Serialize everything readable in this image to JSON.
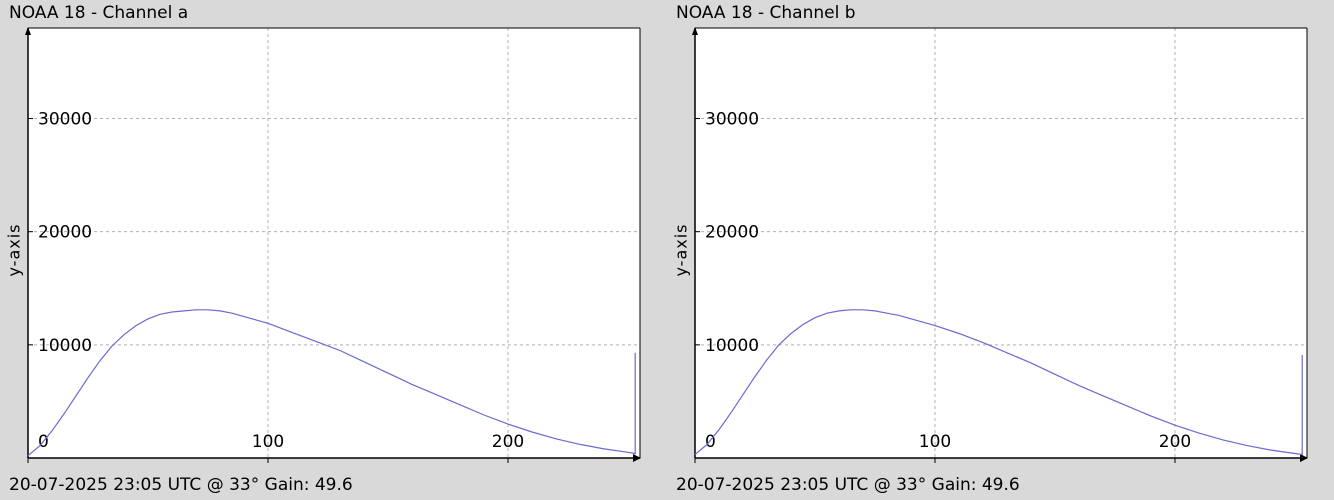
{
  "chart_data": [
    {
      "type": "line",
      "title": "NOAA 18 - Channel a",
      "footer": "20-07-2025 23:05 UTC @ 33° Gain: 49.6",
      "ylabel": "y-axis",
      "xlabel": "",
      "xlim": [
        0,
        255
      ],
      "ylim": [
        0,
        38000
      ],
      "xticks": [
        0,
        100,
        200
      ],
      "xtick_labels": [
        "0",
        "100",
        "200"
      ],
      "yticks": [
        10000,
        20000,
        30000
      ],
      "ytick_labels": [
        "10000",
        "20000",
        "30000"
      ],
      "grid": true,
      "line_color": "#6a6ad0",
      "series": [
        {
          "x": [
            0,
            5,
            10,
            15,
            20,
            25,
            30,
            35,
            40,
            45,
            50,
            55,
            60,
            65,
            70,
            75,
            80,
            85,
            90,
            95,
            100,
            110,
            120,
            130,
            140,
            150,
            160,
            170,
            180,
            190,
            200,
            210,
            220,
            230,
            240,
            250,
            253,
            253,
            253
          ],
          "y": [
            200,
            1100,
            2400,
            3900,
            5500,
            7100,
            8600,
            9900,
            10900,
            11700,
            12300,
            12700,
            12900,
            13000,
            13100,
            13100,
            13000,
            12800,
            12500,
            12200,
            11900,
            11100,
            10300,
            9500,
            8500,
            7500,
            6500,
            5600,
            4700,
            3800,
            3000,
            2300,
            1700,
            1200,
            800,
            500,
            400,
            1000,
            9300
          ]
        }
      ]
    },
    {
      "type": "line",
      "title": "NOAA 18 - Channel b",
      "footer": "20-07-2025 23:05 UTC @ 33° Gain: 49.6",
      "ylabel": "y-axis",
      "xlabel": "",
      "xlim": [
        0,
        255
      ],
      "ylim": [
        0,
        38000
      ],
      "xticks": [
        0,
        100,
        200
      ],
      "xtick_labels": [
        "0",
        "100",
        "200"
      ],
      "yticks": [
        10000,
        20000,
        30000
      ],
      "ytick_labels": [
        "10000",
        "20000",
        "30000"
      ],
      "grid": true,
      "line_color": "#6a6ad0",
      "series": [
        {
          "x": [
            0,
            5,
            10,
            15,
            20,
            25,
            30,
            35,
            40,
            45,
            50,
            55,
            60,
            65,
            70,
            75,
            80,
            85,
            90,
            95,
            100,
            110,
            120,
            130,
            140,
            150,
            160,
            170,
            180,
            190,
            200,
            210,
            220,
            230,
            240,
            250,
            253,
            253,
            253
          ],
          "y": [
            300,
            1200,
            2500,
            4000,
            5600,
            7200,
            8700,
            10000,
            11000,
            11800,
            12400,
            12800,
            13000,
            13100,
            13100,
            13000,
            12800,
            12600,
            12300,
            12000,
            11700,
            11000,
            10200,
            9300,
            8400,
            7400,
            6400,
            5500,
            4600,
            3700,
            2900,
            2200,
            1600,
            1100,
            700,
            400,
            300,
            1000,
            9100
          ]
        }
      ]
    }
  ]
}
